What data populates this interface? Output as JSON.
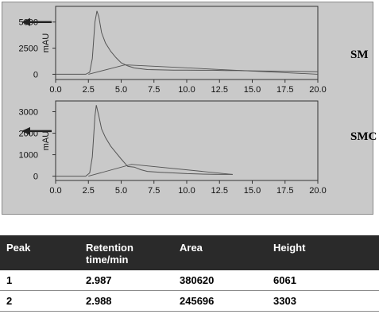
{
  "chart_data": [
    {
      "type": "line",
      "label": "SM",
      "ylabel": "mAU",
      "xlim": [
        0,
        20
      ],
      "ylim": [
        -500,
        6500
      ],
      "xticks": [
        "0.0",
        "2.5",
        "5.0",
        "7.5",
        "10.0",
        "12.5",
        "15.0",
        "17.5",
        "20.0"
      ],
      "yticks": [
        "0",
        "2500",
        "5000"
      ],
      "arrow_at_y": 5000,
      "series": [
        {
          "x": [
            0,
            2.3,
            2.6,
            2.8,
            3.0,
            3.15,
            3.3,
            3.5,
            3.8,
            4.2,
            4.6,
            5.0,
            5.5,
            6.0,
            7.0,
            8.0,
            9.0,
            10.0,
            11.0,
            12.0,
            13.0,
            14.0,
            15.0,
            16.0,
            17.0,
            18.0,
            19.0,
            20.0
          ],
          "y": [
            0,
            0,
            200,
            1500,
            5000,
            6061,
            5500,
            4000,
            3000,
            2200,
            1600,
            1100,
            800,
            600,
            450,
            420,
            400,
            400,
            380,
            380,
            360,
            350,
            330,
            310,
            300,
            280,
            260,
            240
          ]
        },
        {
          "x": [
            2.5,
            5.3,
            20.0
          ],
          "y": [
            0,
            900,
            0
          ]
        }
      ]
    },
    {
      "type": "line",
      "label": "SMC",
      "ylabel": "mAU",
      "xlim": [
        0,
        20
      ],
      "ylim": [
        -200,
        3500
      ],
      "xticks": [
        "0.0",
        "2.5",
        "5.0",
        "7.5",
        "10.0",
        "12.5",
        "15.0",
        "17.5",
        "20.0"
      ],
      "yticks": [
        "0",
        "1000",
        "2000",
        "3000"
      ],
      "arrow_at_y": 2100,
      "series": [
        {
          "x": [
            0,
            2.3,
            2.6,
            2.8,
            3.0,
            3.1,
            3.3,
            3.5,
            3.8,
            4.2,
            4.6,
            5.0,
            5.5,
            6.0,
            6.5,
            7.0,
            8.0,
            9.0,
            10.0,
            11.0,
            12.0,
            13.0,
            13.5
          ],
          "y": [
            0,
            0,
            150,
            900,
            2800,
            3303,
            2800,
            2200,
            1800,
            1400,
            1100,
            800,
            450,
            420,
            300,
            220,
            180,
            150,
            120,
            100,
            90,
            80,
            80
          ]
        },
        {
          "x": [
            2.5,
            5.8,
            13.5
          ],
          "y": [
            0,
            550,
            80
          ]
        }
      ]
    }
  ],
  "table": {
    "headers": [
      "Peak",
      "Retention time/min",
      "Area",
      "Height"
    ],
    "rows": [
      [
        "1",
        "2.987",
        "380620",
        "6061"
      ],
      [
        "2",
        "2.988",
        "245696",
        "3303"
      ]
    ]
  }
}
